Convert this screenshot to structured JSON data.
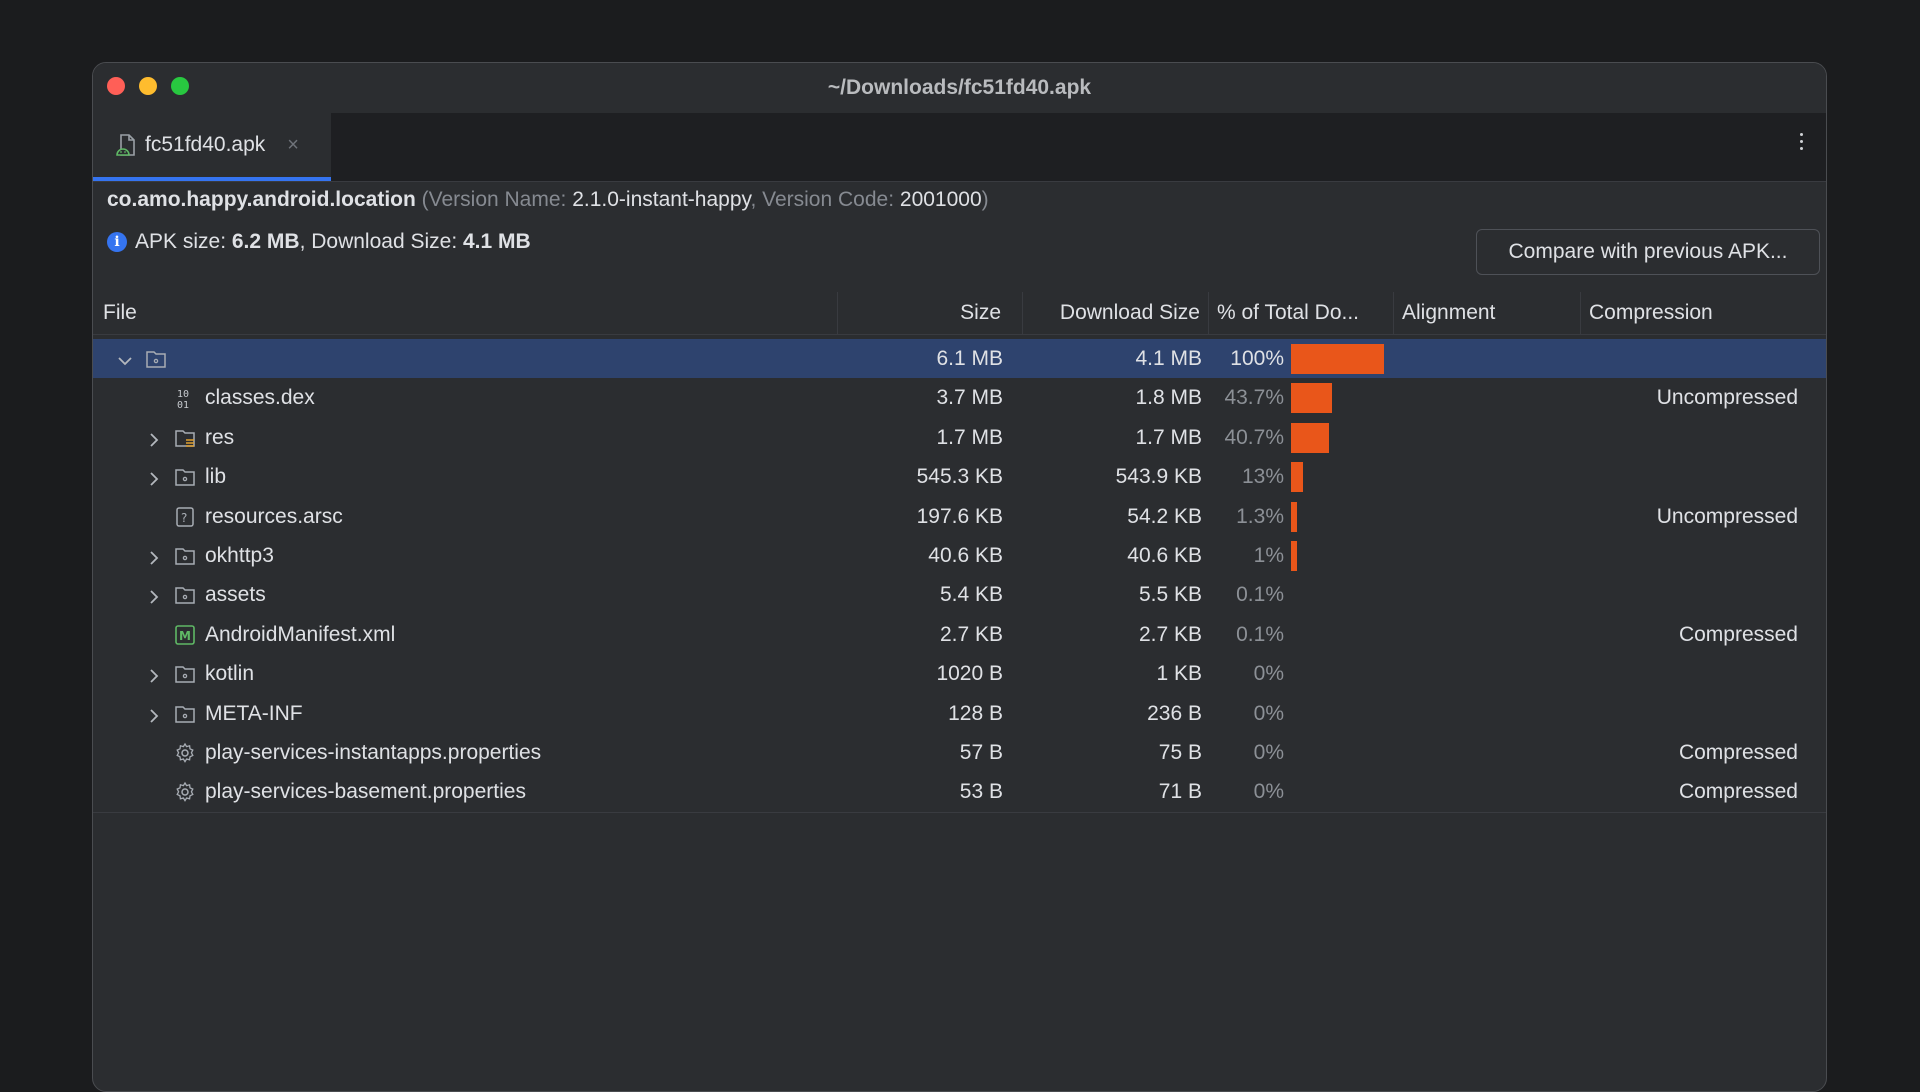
{
  "window": {
    "title": "~/Downloads/fc51fd40.apk"
  },
  "tab": {
    "label": "fc51fd40.apk",
    "close_glyph": "×"
  },
  "package": {
    "name": "co.amo.happy.android.location",
    "open_paren": " (",
    "version_name_label": "Version Name: ",
    "version_name": "2.1.0-instant-happy",
    "sep": ", ",
    "version_code_label": "Version Code: ",
    "version_code": "2001000",
    "close_paren": ")"
  },
  "sizes": {
    "apk_label": "APK size: ",
    "apk_value": "6.2 MB",
    "sep": ", ",
    "download_label": "Download Size: ",
    "download_value": "4.1 MB"
  },
  "compare_button": "Compare with previous APK...",
  "columns": [
    "File",
    "Size",
    "Download Size",
    "% of Total Do...",
    "Alignment",
    "Compression"
  ],
  "accent_colors": {
    "bar": "#e9561a",
    "selection": "#2e436e",
    "tab_underline": "#3574f0"
  },
  "rows": [
    {
      "name": "",
      "icon": "folder-icon",
      "expander": "expanded",
      "level": 0,
      "size": "6.1 MB",
      "download": "4.1 MB",
      "pct": "100%",
      "pct_value": 100,
      "alignment": "",
      "compression": "",
      "selected": true
    },
    {
      "name": "classes.dex",
      "icon": "dex-icon",
      "expander": "none",
      "level": 1,
      "size": "3.7 MB",
      "download": "1.8 MB",
      "pct": "43.7%",
      "pct_value": 43.7,
      "alignment": "",
      "compression": "Uncompressed"
    },
    {
      "name": "res",
      "icon": "res-folder-icon",
      "expander": "collapsed",
      "level": 1,
      "size": "1.7 MB",
      "download": "1.7 MB",
      "pct": "40.7%",
      "pct_value": 40.7,
      "alignment": "",
      "compression": ""
    },
    {
      "name": "lib",
      "icon": "folder-icon",
      "expander": "collapsed",
      "level": 1,
      "size": "545.3 KB",
      "download": "543.9 KB",
      "pct": "13%",
      "pct_value": 13,
      "alignment": "",
      "compression": ""
    },
    {
      "name": "resources.arsc",
      "icon": "unknown-file-icon",
      "expander": "none",
      "level": 1,
      "size": "197.6 KB",
      "download": "54.2 KB",
      "pct": "1.3%",
      "pct_value": 1.3,
      "alignment": "",
      "compression": "Uncompressed"
    },
    {
      "name": "okhttp3",
      "icon": "folder-icon",
      "expander": "collapsed",
      "level": 1,
      "size": "40.6 KB",
      "download": "40.6 KB",
      "pct": "1%",
      "pct_value": 1,
      "alignment": "",
      "compression": ""
    },
    {
      "name": "assets",
      "icon": "folder-icon",
      "expander": "collapsed",
      "level": 1,
      "size": "5.4 KB",
      "download": "5.5 KB",
      "pct": "0.1%",
      "pct_value": 0.1,
      "alignment": "",
      "compression": ""
    },
    {
      "name": "AndroidManifest.xml",
      "icon": "manifest-icon",
      "expander": "none",
      "level": 1,
      "size": "2.7 KB",
      "download": "2.7 KB",
      "pct": "0.1%",
      "pct_value": 0.1,
      "alignment": "",
      "compression": "Compressed"
    },
    {
      "name": "kotlin",
      "icon": "folder-icon",
      "expander": "collapsed",
      "level": 1,
      "size": "1020 B",
      "download": "1 KB",
      "pct": "0%",
      "pct_value": 0,
      "alignment": "",
      "compression": ""
    },
    {
      "name": "META-INF",
      "icon": "folder-icon",
      "expander": "collapsed",
      "level": 1,
      "size": "128 B",
      "download": "236 B",
      "pct": "0%",
      "pct_value": 0,
      "alignment": "",
      "compression": ""
    },
    {
      "name": "play-services-instantapps.properties",
      "icon": "gear-icon",
      "expander": "none",
      "level": 1,
      "size": "57 B",
      "download": "75 B",
      "pct": "0%",
      "pct_value": 0,
      "alignment": "",
      "compression": "Compressed"
    },
    {
      "name": "play-services-basement.properties",
      "icon": "gear-icon",
      "expander": "none",
      "level": 1,
      "size": "53 B",
      "download": "71 B",
      "pct": "0%",
      "pct_value": 0,
      "alignment": "",
      "compression": "Compressed"
    }
  ]
}
